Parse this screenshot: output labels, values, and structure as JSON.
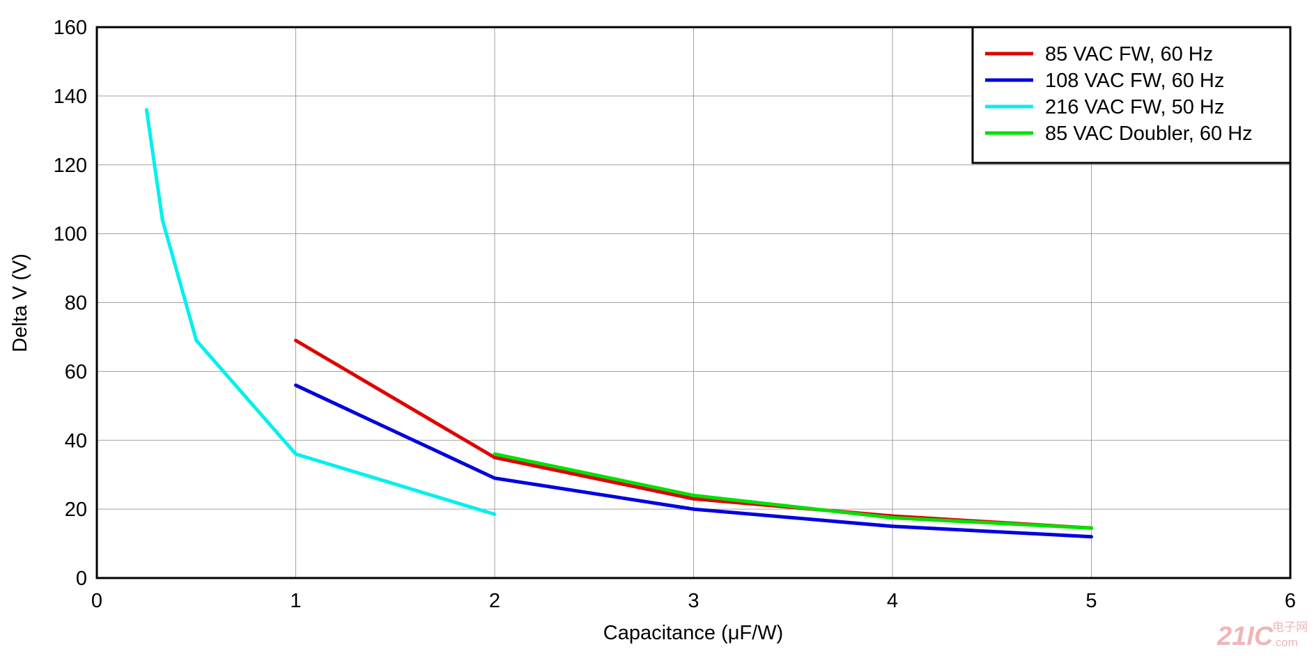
{
  "chart_data": {
    "type": "line",
    "title": "",
    "xlabel": "Capacitance (μF/W)",
    "ylabel": "Delta V (V)",
    "xlim": [
      0,
      6
    ],
    "ylim": [
      0,
      160
    ],
    "x_ticks": [
      "0",
      "1",
      "2",
      "3",
      "4",
      "5",
      "6"
    ],
    "y_ticks": [
      "0",
      "20",
      "40",
      "60",
      "80",
      "100",
      "120",
      "140",
      "160"
    ],
    "grid": true,
    "legend_position": "top-right",
    "series": [
      {
        "name": "85 VAC FW, 60 Hz",
        "color": "#e00000",
        "points": [
          [
            1,
            69
          ],
          [
            2,
            35
          ],
          [
            3,
            23
          ],
          [
            4,
            18
          ],
          [
            5,
            14.5
          ]
        ]
      },
      {
        "name": "108 VAC FW, 60 Hz",
        "color": "#0000e0",
        "points": [
          [
            1,
            56
          ],
          [
            2,
            29
          ],
          [
            3,
            20
          ],
          [
            4,
            15
          ],
          [
            5,
            12
          ]
        ]
      },
      {
        "name": "216 VAC FW, 50 Hz",
        "color": "#00f0f0",
        "points": [
          [
            0.25,
            136
          ],
          [
            0.33,
            104
          ],
          [
            0.5,
            69
          ],
          [
            1,
            36
          ],
          [
            2,
            18.5
          ]
        ]
      },
      {
        "name": "85 VAC Doubler, 60 Hz",
        "color": "#00e000",
        "points": [
          [
            2,
            36
          ],
          [
            3,
            24
          ],
          [
            4,
            17.5
          ],
          [
            5,
            14.5
          ]
        ]
      }
    ]
  },
  "watermark": {
    "main": "21IC",
    "sub_top": "电子网",
    "sub_bottom": ".com"
  }
}
